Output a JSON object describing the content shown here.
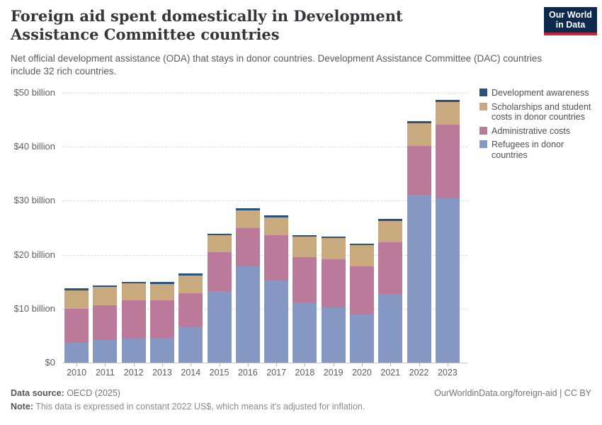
{
  "header": {
    "title": "Foreign aid spent domestically in Development Assistance Committee countries",
    "subtitle": "Net official development assistance (ODA) that stays in donor countries. Development Assistance Committee (DAC) countries include 32 rich countries.",
    "logo": {
      "line1": "Our World",
      "line2": "in Data",
      "background_color": "#0d2a4e",
      "stripe_color": "#c5283c"
    }
  },
  "legend": {
    "items": [
      {
        "label": "Development awareness",
        "color": "#2a527c"
      },
      {
        "label": "Scholarships and student costs in donor countries",
        "color": "#c9a97e"
      },
      {
        "label": "Administrative costs",
        "color": "#bc7a9a"
      },
      {
        "label": "Refugees in donor countries",
        "color": "#8598c4"
      }
    ]
  },
  "chart_data": {
    "type": "bar",
    "stacked": true,
    "title": "Foreign aid spent domestically in Development Assistance Committee countries",
    "unit": "constant 2022 US$ billion",
    "categories": [
      "2010",
      "2011",
      "2012",
      "2013",
      "2014",
      "2015",
      "2016",
      "2017",
      "2018",
      "2019",
      "2020",
      "2021",
      "2022",
      "2023"
    ],
    "series": [
      {
        "name": "Refugees in donor countries",
        "color": "#8598c4",
        "values": [
          3.7,
          4.2,
          4.4,
          4.6,
          6.5,
          13.3,
          17.8,
          15.2,
          11.1,
          10.2,
          8.9,
          12.7,
          31.1,
          30.5
        ]
      },
      {
        "name": "Administrative costs",
        "color": "#bc7a9a",
        "values": [
          6.3,
          6.4,
          7.1,
          6.9,
          6.4,
          7.2,
          7.2,
          8.4,
          8.4,
          8.9,
          8.9,
          9.6,
          9.0,
          13.6
        ]
      },
      {
        "name": "Scholarships and student costs in donor countries",
        "color": "#c9a97e",
        "values": [
          3.4,
          3.4,
          3.2,
          3.1,
          3.2,
          3.1,
          3.2,
          3.3,
          3.8,
          4.0,
          4.0,
          3.9,
          4.3,
          4.2
        ]
      },
      {
        "name": "Development awareness",
        "color": "#2a527c",
        "values": [
          0.4,
          0.3,
          0.3,
          0.3,
          0.4,
          0.3,
          0.4,
          0.4,
          0.3,
          0.3,
          0.3,
          0.4,
          0.4,
          0.4
        ]
      }
    ],
    "ylim": [
      0,
      50
    ],
    "yticks": [
      {
        "value": 0,
        "label": "$0"
      },
      {
        "value": 10,
        "label": "$10 billion"
      },
      {
        "value": 20,
        "label": "$20 billion"
      },
      {
        "value": 30,
        "label": "$30 billion"
      },
      {
        "value": 40,
        "label": "$40 billion"
      },
      {
        "value": 50,
        "label": "$50 billion"
      }
    ],
    "grid": "horizontal-dashed",
    "legend_position": "right",
    "xlabel": "",
    "ylabel": ""
  },
  "footer": {
    "source_label": "Data source:",
    "source_value": " OECD (2025)",
    "link": "OurWorldinData.org/foreign-aid | CC BY",
    "note_label": "Note:",
    "note_value": " This data is expressed in constant 2022 US$, which means it's adjusted for inflation."
  }
}
